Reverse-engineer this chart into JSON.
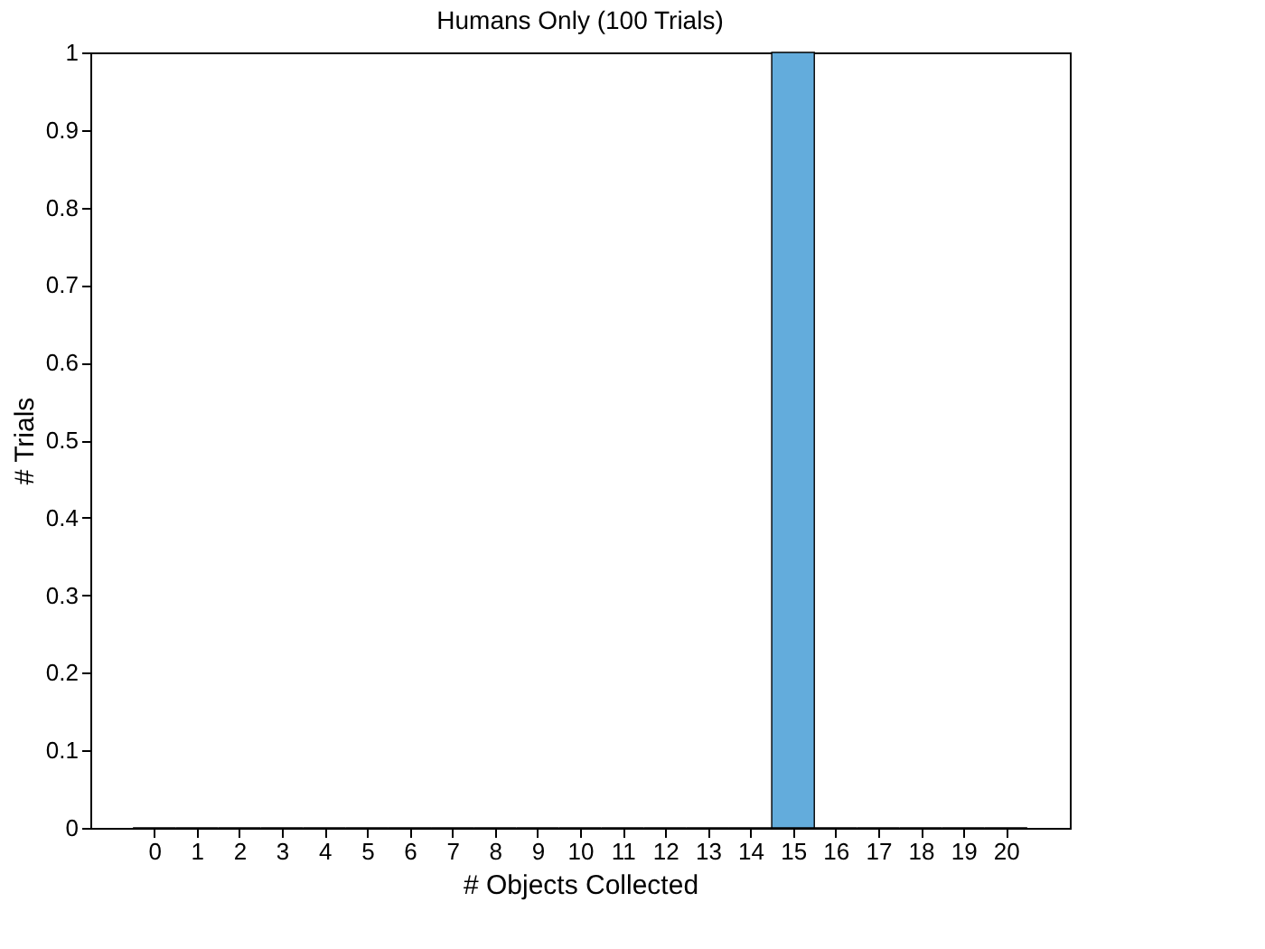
{
  "chart_data": {
    "type": "histogram",
    "title": "Humans Only (100 Trials)",
    "xlabel": "# Objects Collected",
    "ylabel": "# Trials",
    "bins": [
      -0.5,
      0.5,
      1.5,
      2.5,
      3.5,
      4.5,
      5.5,
      6.5,
      7.5,
      8.5,
      9.5,
      10.5,
      11.5,
      12.5,
      13.5,
      14.5,
      15.5,
      16.5,
      17.5,
      18.5,
      19.5,
      20.5
    ],
    "values": [
      0,
      0,
      0,
      0,
      0,
      0,
      0,
      0,
      0,
      0,
      0,
      0,
      0,
      0,
      0,
      1,
      0,
      0,
      0,
      0,
      0
    ],
    "color": "#63acdc",
    "xlim": [
      -1.5,
      21.5
    ],
    "xticks": [
      0,
      1,
      2,
      3,
      4,
      5,
      6,
      7,
      8,
      9,
      10,
      11,
      12,
      13,
      14,
      15,
      16,
      17,
      18,
      19,
      20
    ],
    "ylim": [
      0,
      1
    ],
    "yticks": [
      0,
      0.1,
      0.2,
      0.3,
      0.4,
      0.5,
      0.6,
      0.7,
      0.8,
      0.9,
      1
    ],
    "grid": false
  }
}
